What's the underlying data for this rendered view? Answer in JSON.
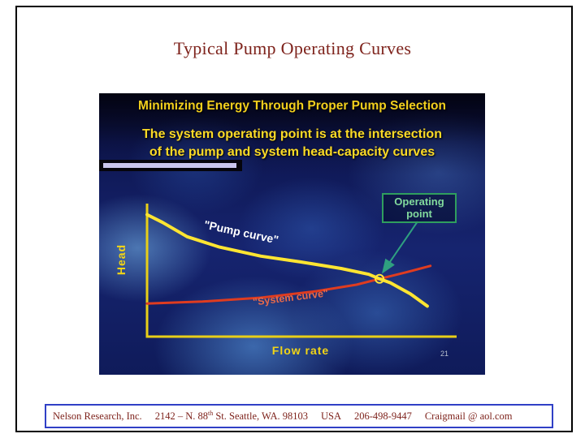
{
  "slide": {
    "title": "Typical Pump Operating Curves",
    "page_number": "21"
  },
  "inner_slide": {
    "heading": "Minimizing Energy Through Proper Pump Selection",
    "body_lines": [
      "The system operating point is at the intersection",
      "of the pump and system head-capacity curves"
    ]
  },
  "chart_data": {
    "type": "line",
    "title": "Minimizing Energy Through Proper Pump Selection",
    "xlabel": "Flow rate",
    "ylabel": "Head",
    "axes_tick_labels": "none (qualitative conceptual chart)",
    "grid": false,
    "x_range": [
      0,
      100
    ],
    "y_range": [
      0,
      100
    ],
    "series": [
      {
        "name": "\"Pump curve\"",
        "color": "#ffe532",
        "points": [
          [
            0,
            94
          ],
          [
            5,
            88
          ],
          [
            13,
            77
          ],
          [
            23.5,
            69
          ],
          [
            37,
            62
          ],
          [
            50,
            57.5
          ],
          [
            63,
            52.5
          ],
          [
            72,
            48
          ],
          [
            75.5,
            44.5
          ],
          [
            79,
            41.5
          ],
          [
            85.5,
            33
          ],
          [
            91,
            23.5
          ]
        ]
      },
      {
        "name": "\"System curve\"",
        "color": "#df3c20",
        "points": [
          [
            0,
            25.5
          ],
          [
            18,
            27
          ],
          [
            37,
            30
          ],
          [
            55,
            35
          ],
          [
            68,
            40
          ],
          [
            75.5,
            44.5
          ],
          [
            84,
            49.5
          ],
          [
            92,
            54.5
          ]
        ]
      }
    ],
    "operating_point": {
      "label": "Operating point",
      "x": 75.5,
      "y": 44.5
    }
  },
  "footer": {
    "company": "Nelson Research, Inc.",
    "street_prefix": "2142 – N. 88",
    "street_sup": "th",
    "street_suffix": " St. Seattle, WA. 98103",
    "country": "USA",
    "phone": "206-498-9447",
    "email": "Craigmail @ aol.com"
  },
  "colors": {
    "title_text": "#7e231c",
    "slide_background": "#16246f",
    "heading_yellow": "#f2cf1d",
    "axis_yellow": "#e8cf18",
    "pump_curve": "#ffe532",
    "system_curve": "#df3c20",
    "operating_green": "#2f9e5e",
    "lavender_bar": "#c9c6ee",
    "footer_border": "#3040c6"
  }
}
